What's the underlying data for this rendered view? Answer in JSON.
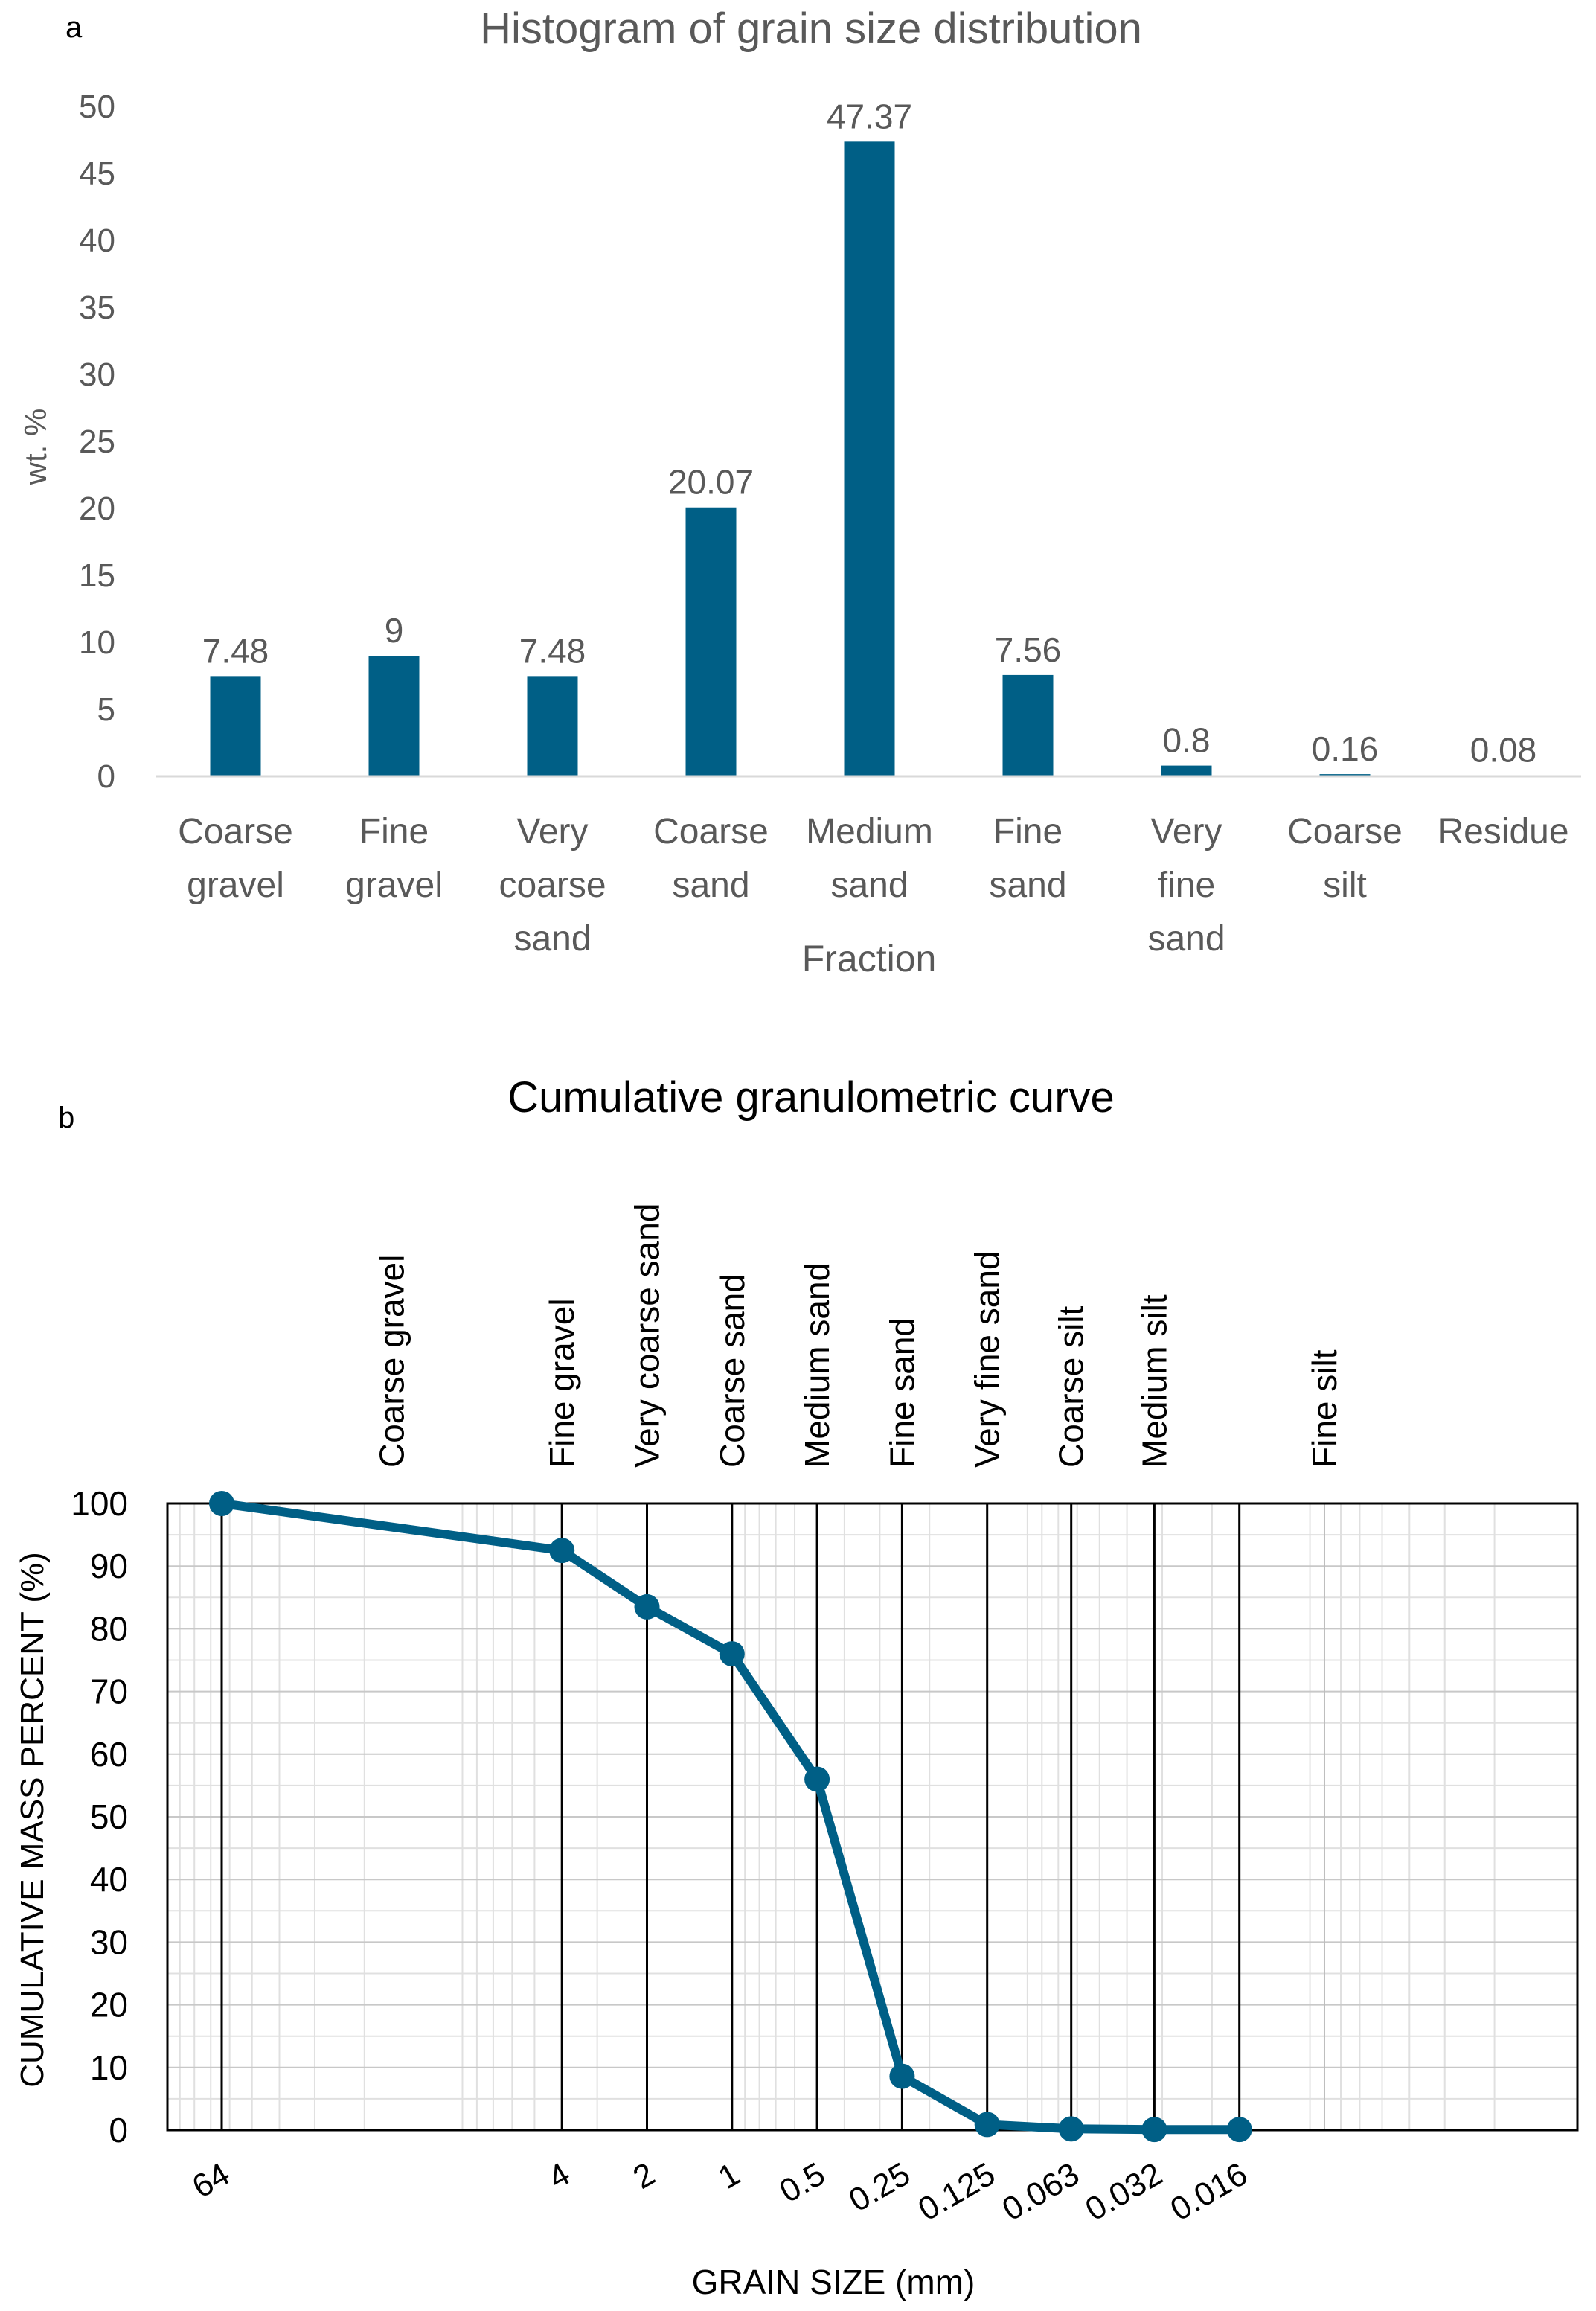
{
  "colors": {
    "bar": "#005f86",
    "line": "#005f86",
    "text_a": "#595959",
    "text_b": "#000000",
    "grid_minor": "#e0e0e0",
    "axis_a": "#d9d9d9"
  },
  "panel_a": {
    "label": "a",
    "chart_data": {
      "type": "bar",
      "title": "Histogram of grain size distribution",
      "xlabel": "Fraction",
      "ylabel": "wt. %",
      "ylim": [
        0,
        50
      ],
      "yticks": [
        "0",
        "5",
        "10",
        "15",
        "20",
        "25",
        "30",
        "35",
        "40",
        "45",
        "50"
      ],
      "categories": [
        [
          "Coarse",
          "gravel"
        ],
        [
          "Fine",
          "gravel"
        ],
        [
          "Very",
          "coarse",
          "sand"
        ],
        [
          "Coarse",
          "sand"
        ],
        [
          "Medium",
          "sand"
        ],
        [
          "Fine",
          "sand"
        ],
        [
          "Very",
          "fine",
          "sand"
        ],
        [
          "Coarse",
          "silt"
        ],
        [
          "Residue"
        ]
      ],
      "values": [
        7.48,
        9,
        7.48,
        20.07,
        47.37,
        7.56,
        0.8,
        0.16,
        0.08
      ],
      "value_labels": [
        "7.48",
        "9",
        "7.48",
        "20.07",
        "47.37",
        "7.56",
        "0.8",
        "0.16",
        "0.08"
      ]
    }
  },
  "panel_b": {
    "label": "b",
    "chart_data": {
      "type": "line",
      "title": "Cumulative granulometric curve",
      "xlabel": "GRAIN SIZE (mm)",
      "ylabel": "CUMULATIVE MASS PERCENT (%)",
      "ylim": [
        0,
        100
      ],
      "yticks": [
        "0",
        "10",
        "20",
        "30",
        "40",
        "50",
        "60",
        "70",
        "80",
        "90",
        "100"
      ],
      "x_scale": "log, decreasing",
      "x_ticks": [
        "64",
        "4",
        "2",
        "1",
        "0.5",
        "0.25",
        "0.125",
        "0.063",
        "0.032",
        "0.016"
      ],
      "x_tick_values": [
        64,
        4,
        2,
        1,
        0.5,
        0.25,
        0.125,
        0.063,
        0.032,
        0.016
      ],
      "series": [
        {
          "name": "Cumulative mass percent",
          "x": [
            64,
            4,
            2,
            1,
            0.5,
            0.25,
            0.125,
            0.063,
            0.032,
            0.016
          ],
          "y": [
            100,
            92.5,
            83.5,
            76,
            56,
            8.6,
            0.9,
            0.2,
            0.1,
            0.1
          ]
        }
      ],
      "fraction_labels": [
        {
          "label": "Coarse gravel",
          "at": 16
        },
        {
          "label": "Fine gravel",
          "at": 4
        },
        {
          "label": "Very coarse sand",
          "at": 2
        },
        {
          "label": "Coarse sand",
          "at": 1
        },
        {
          "label": "Medium sand",
          "at": 0.5
        },
        {
          "label": "Fine sand",
          "at": 0.25
        },
        {
          "label": "Very fine sand",
          "at": 0.125
        },
        {
          "label": "Coarse silt",
          "at": 0.063
        },
        {
          "label": "Medium silt",
          "at": 0.032
        },
        {
          "label": "Fine silt",
          "at": 0.008
        }
      ]
    }
  }
}
